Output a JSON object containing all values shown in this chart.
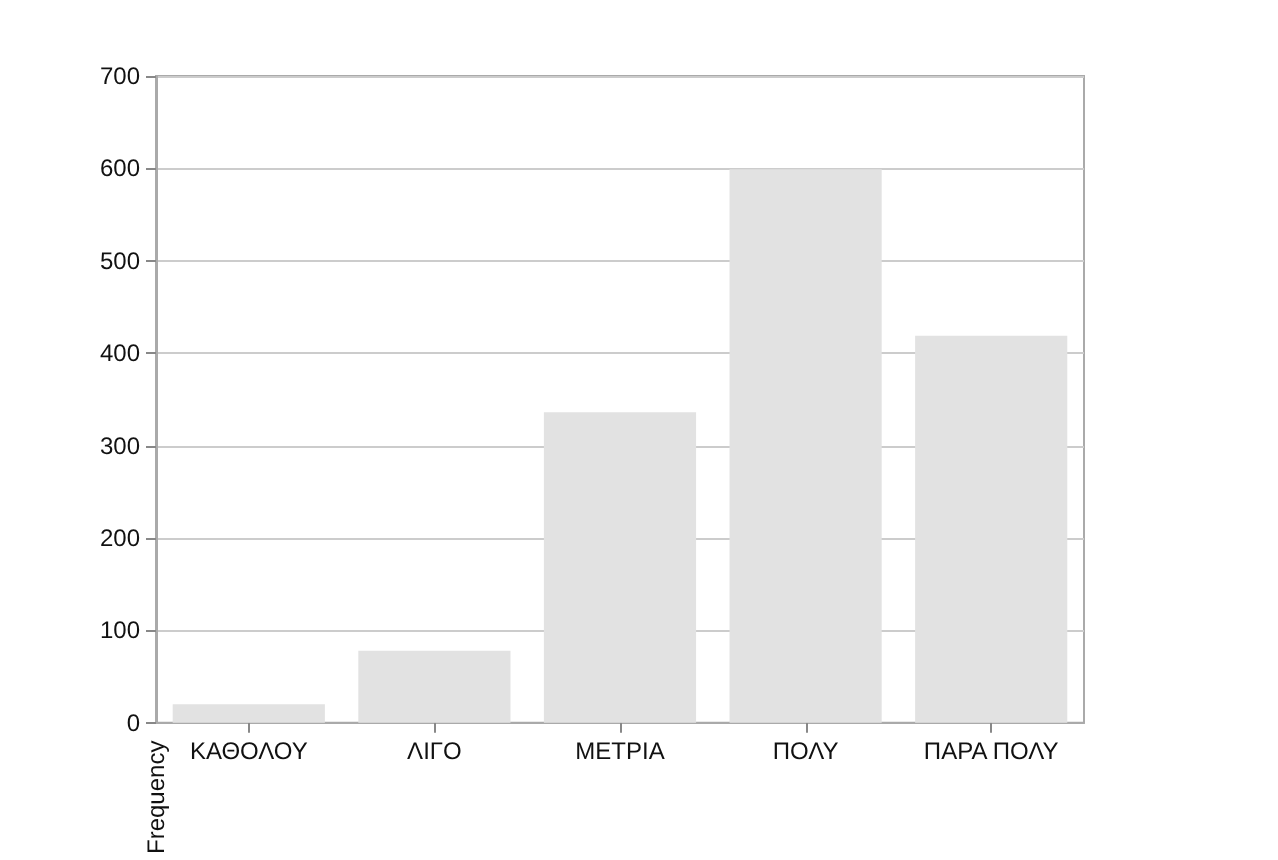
{
  "chart_data": {
    "type": "bar",
    "ylabel": "Frequency",
    "categories": [
      "ΚΑΘΟΛΟΥ",
      "ΛΙΓΟ",
      "ΜΕΤΡΙΑ",
      "ΠΟΛΥ",
      "ΠΑΡΑ ΠΟΛΥ"
    ],
    "values": [
      20,
      78,
      336,
      599,
      419
    ],
    "color": "#e2e2e2",
    "ylim": [
      0,
      700
    ],
    "yticks": [
      0,
      100,
      200,
      300,
      400,
      500,
      600,
      700
    ],
    "grid": "y"
  }
}
